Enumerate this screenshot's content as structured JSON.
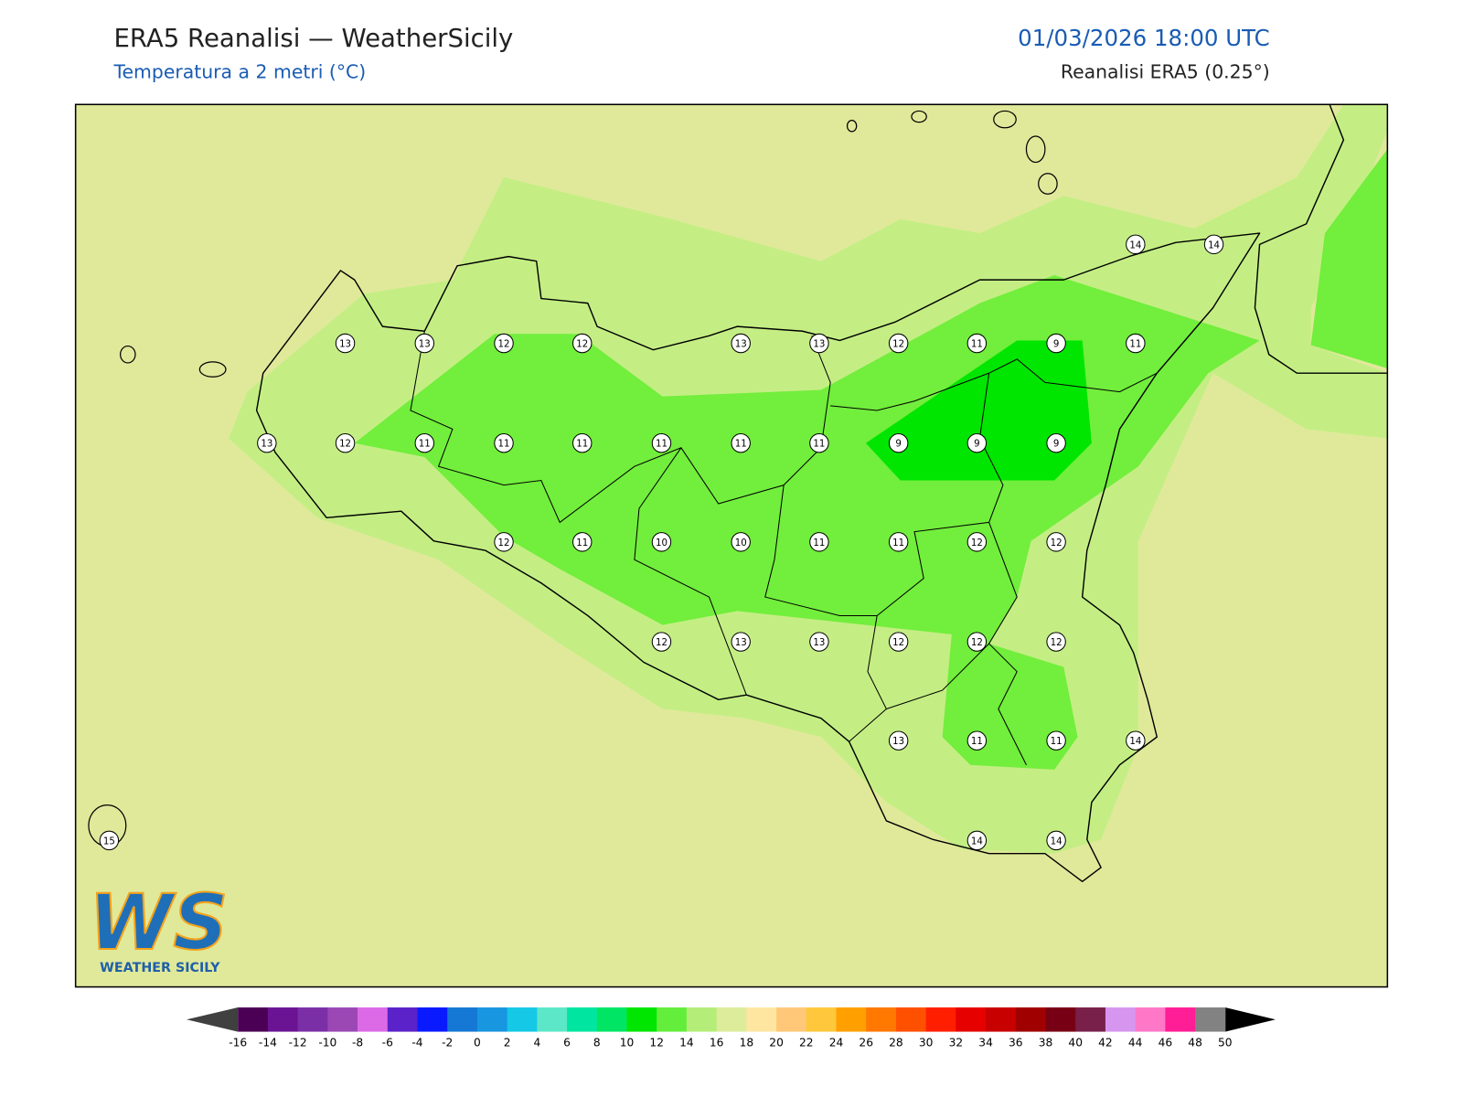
{
  "header": {
    "title": "ERA5 Reanalisi — WeatherSicily",
    "subtitle": "Temperatura a 2 metri (°C)",
    "datetime": "01/03/2026 18:00 UTC",
    "source": "Reanalisi ERA5 (0.25°)"
  },
  "stations": [
    14,
    14,
    13,
    13,
    12,
    12,
    13,
    13,
    12,
    11,
    9,
    11,
    13,
    12,
    11,
    11,
    11,
    11,
    11,
    11,
    9,
    9,
    9,
    12,
    11,
    10,
    10,
    11,
    11,
    12,
    12,
    12,
    13,
    13,
    12,
    12,
    12,
    13,
    11,
    11,
    14,
    15,
    14,
    14
  ],
  "logo": {
    "mark": "WS",
    "name": "WEATHER SICILY"
  },
  "colorbar": {
    "ticks": [
      -16,
      -14,
      -12,
      -10,
      -8,
      -6,
      -4,
      -2,
      0,
      2,
      4,
      6,
      8,
      10,
      12,
      14,
      16,
      18,
      20,
      22,
      24,
      26,
      28,
      30,
      32,
      34,
      36,
      38,
      40,
      42,
      44,
      46,
      48,
      50
    ],
    "colors": [
      "#4b0055",
      "#6a1494",
      "#7b2fa6",
      "#9b48b5",
      "#dc6ae6",
      "#5a22c8",
      "#0a1aff",
      "#1478d4",
      "#1996e0",
      "#14c8e6",
      "#5ce8c8",
      "#00e6a0",
      "#00e664",
      "#00e600",
      "#64ee3c",
      "#b4ee78",
      "#dcec9a",
      "#ffe6a0",
      "#ffc878",
      "#ffc83c",
      "#ffa000",
      "#ff7800",
      "#ff5000",
      "#ff1e00",
      "#e60000",
      "#c80000",
      "#a00000",
      "#780014",
      "#78204a",
      "#d696f0",
      "#ff78c8",
      "#ff1e96",
      "#828282",
      "#3c3c3c"
    ],
    "under": "#404040",
    "over": "#000000"
  }
}
